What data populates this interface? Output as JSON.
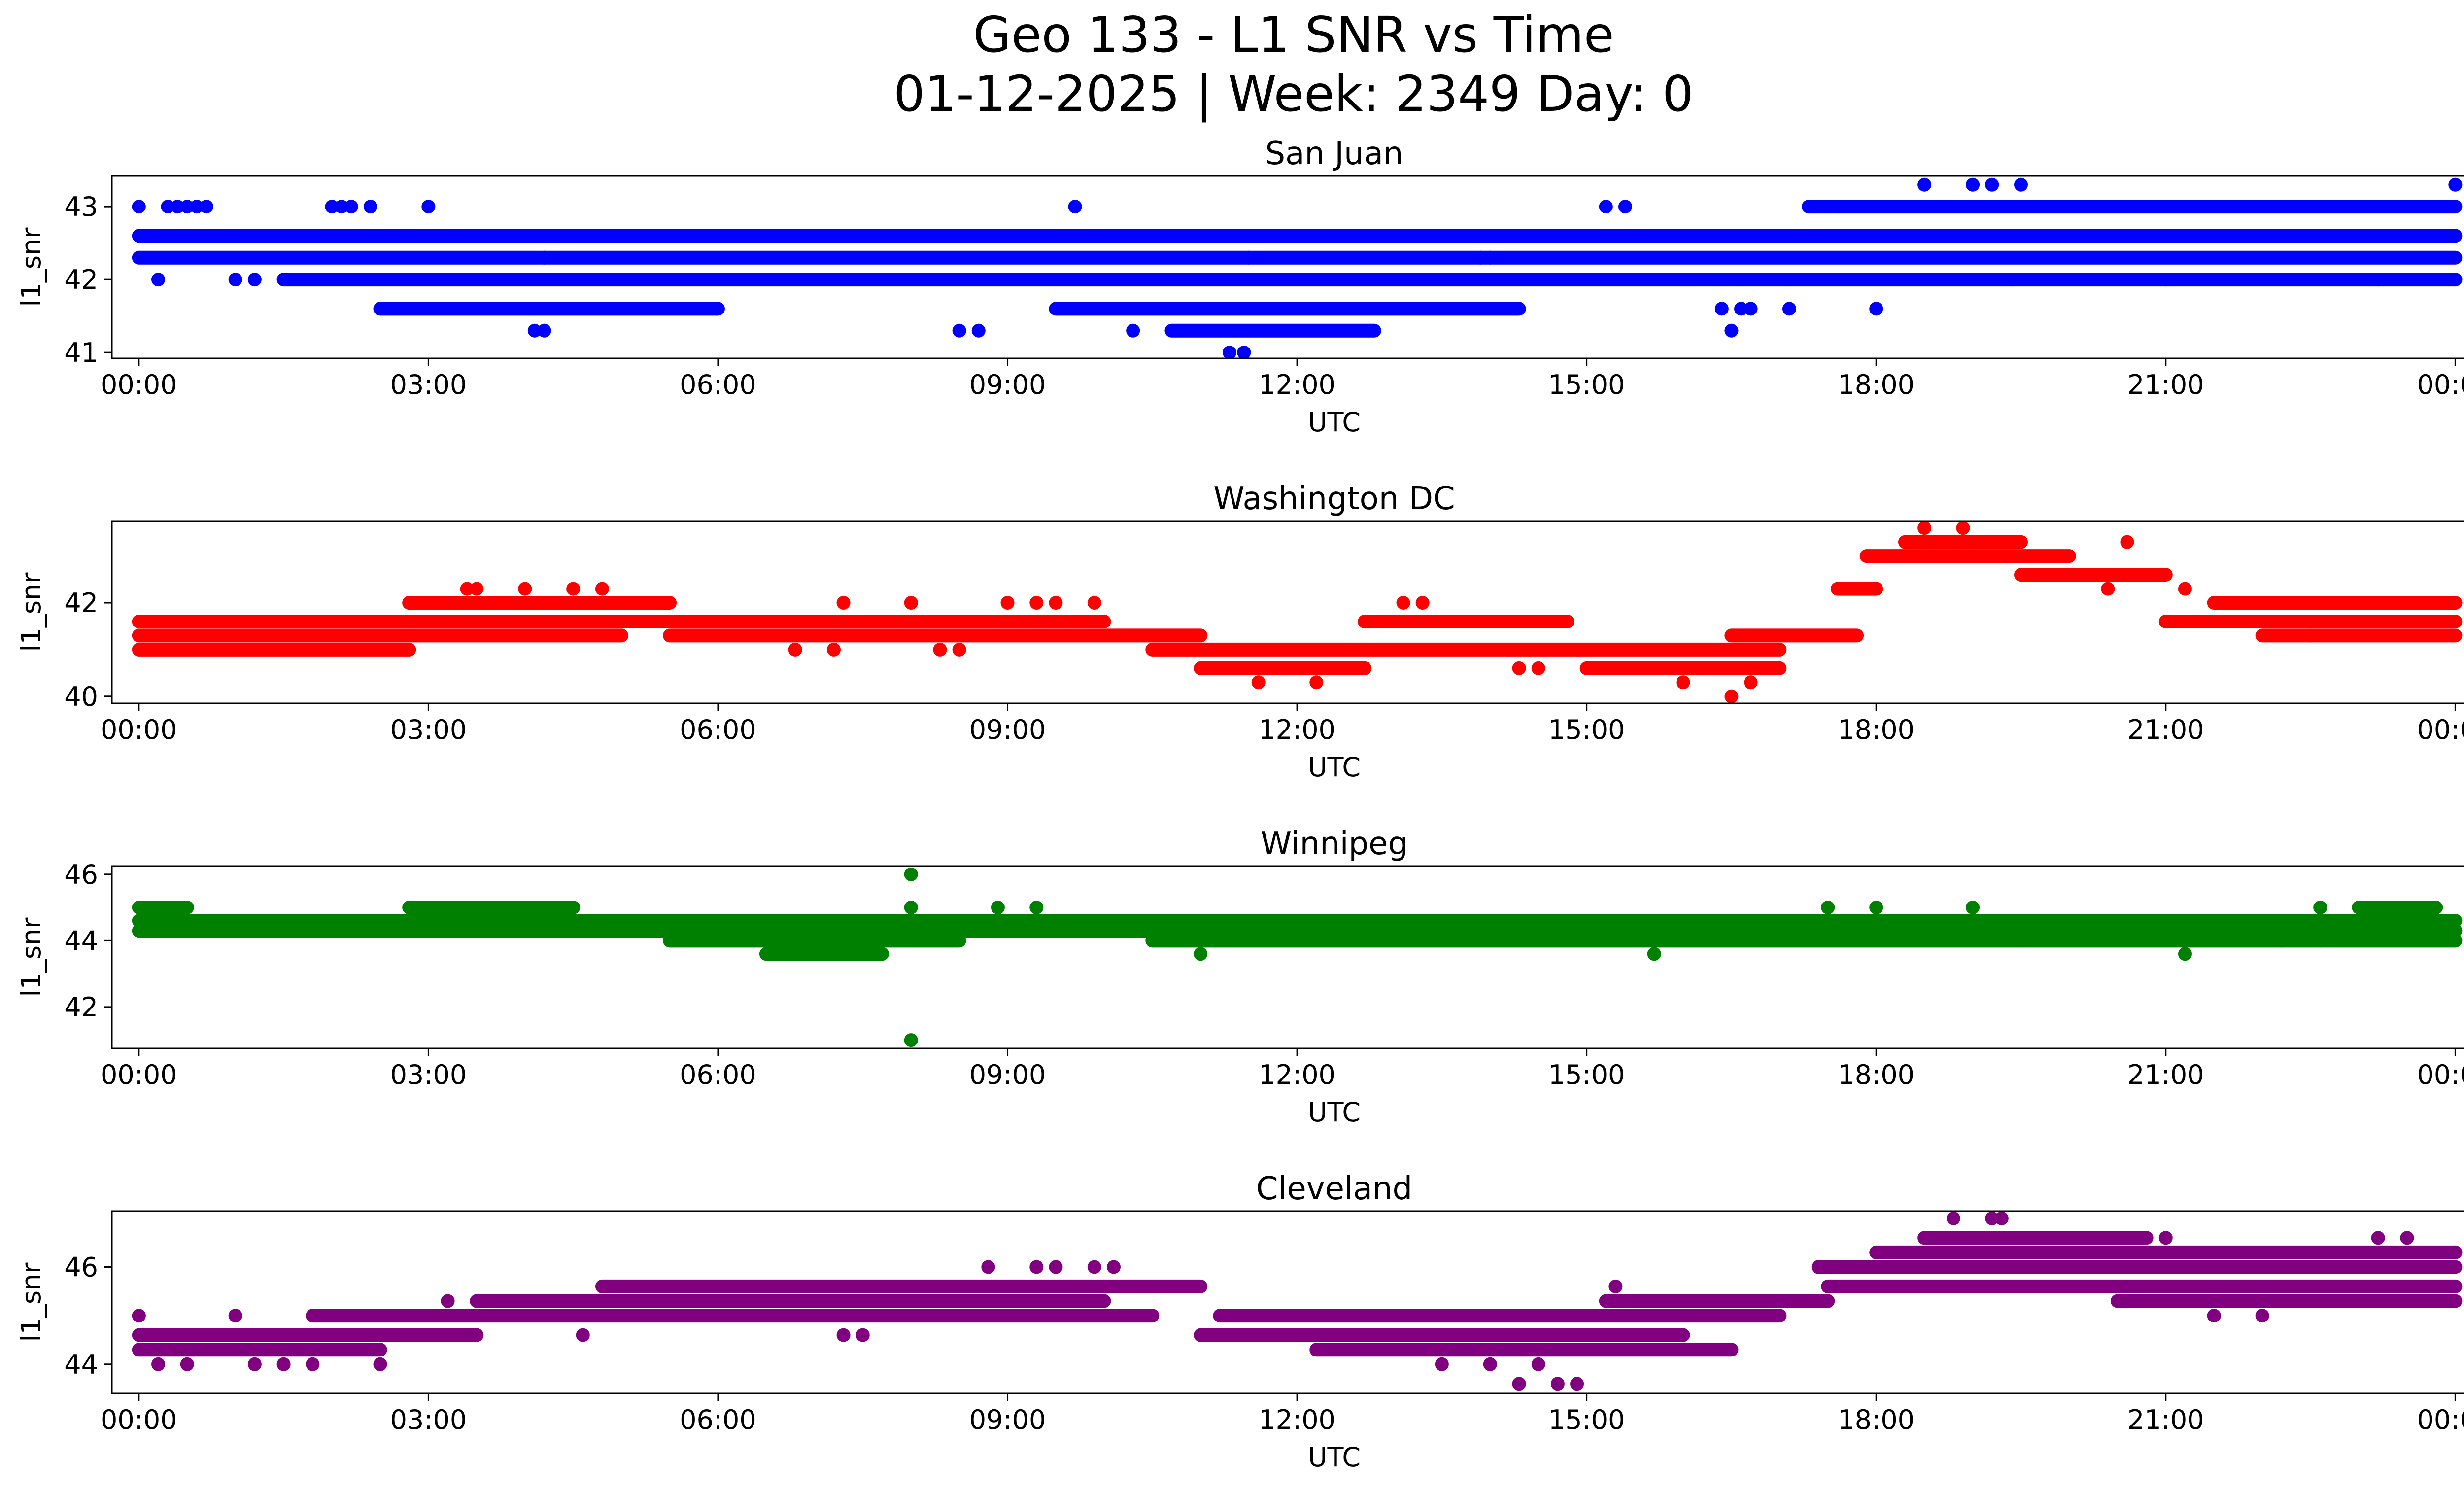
{
  "figure": {
    "title_line1": "Geo 133 - L1 SNR vs Time",
    "title_line2": "01-12-2025 | Week: 2349 Day: 0"
  },
  "chart_data": [
    {
      "type": "scatter",
      "title": "San Juan",
      "xlabel": "UTC",
      "ylabel": "l1_snr",
      "color": "#0000ff",
      "xlim": [
        -0.28,
        25.05
      ],
      "ylim": [
        40.92,
        43.42
      ],
      "xticks": [
        "00:00",
        "03:00",
        "06:00",
        "09:00",
        "12:00",
        "15:00",
        "18:00",
        "21:00",
        "00:00"
      ],
      "yticks": [
        41,
        42,
        43
      ],
      "grid": false,
      "dense_bands": [
        {
          "x0": 0.0,
          "x1": 24.0,
          "y": 42.6
        },
        {
          "x0": 0.0,
          "x1": 24.0,
          "y": 42.3
        },
        {
          "x0": 1.5,
          "x1": 24.0,
          "y": 42.0
        },
        {
          "x0": 2.5,
          "x1": 6.0,
          "y": 41.6
        },
        {
          "x0": 9.5,
          "x1": 14.3,
          "y": 41.6
        },
        {
          "x0": 10.7,
          "x1": 12.8,
          "y": 41.3
        },
        {
          "x0": 17.3,
          "x1": 24.0,
          "y": 43.0
        }
      ],
      "points": [
        [
          0,
          43
        ],
        [
          0.3,
          43
        ],
        [
          0.4,
          43
        ],
        [
          0.5,
          43
        ],
        [
          0.6,
          43
        ],
        [
          0.7,
          43
        ],
        [
          0.2,
          42
        ],
        [
          1,
          42
        ],
        [
          1.2,
          42
        ],
        [
          2,
          43
        ],
        [
          2.1,
          43
        ],
        [
          2.2,
          43
        ],
        [
          2.4,
          43
        ],
        [
          3,
          43
        ],
        [
          3.5,
          42.6
        ],
        [
          4.1,
          41.3
        ],
        [
          4.2,
          41.3
        ],
        [
          4.2,
          42.3
        ],
        [
          7,
          42.6
        ],
        [
          8,
          42.6
        ],
        [
          8.5,
          41.3
        ],
        [
          8.7,
          41.3
        ],
        [
          9.2,
          42.6
        ],
        [
          9.4,
          42.6
        ],
        [
          9.7,
          43
        ],
        [
          9.5,
          42.6
        ],
        [
          10.3,
          41.3
        ],
        [
          10.5,
          42.6
        ],
        [
          10.9,
          42.6
        ],
        [
          11.3,
          41
        ],
        [
          11.45,
          41
        ],
        [
          11.5,
          42.3
        ],
        [
          13.9,
          42.3
        ],
        [
          14,
          42.3
        ],
        [
          15.2,
          43
        ],
        [
          15.4,
          43
        ],
        [
          16,
          42
        ],
        [
          16.5,
          41.3
        ],
        [
          16.4,
          41.6
        ],
        [
          16.6,
          41.6
        ],
        [
          16.7,
          41.6
        ],
        [
          17.1,
          41.6
        ],
        [
          17.6,
          43
        ],
        [
          18.0,
          41.6
        ],
        [
          18.5,
          43.3
        ],
        [
          19.0,
          43.3
        ],
        [
          19.2,
          43.3
        ],
        [
          19.5,
          43.3
        ],
        [
          19.4,
          42
        ],
        [
          21,
          42
        ],
        [
          23.2,
          42
        ],
        [
          24.0,
          43.3
        ],
        [
          24.0,
          42
        ]
      ]
    },
    {
      "type": "scatter",
      "title": "Washington DC",
      "xlabel": "UTC",
      "ylabel": "l1_snr",
      "color": "#ff0000",
      "xlim": [
        -0.28,
        25.05
      ],
      "ylim": [
        39.85,
        43.75
      ],
      "xticks": [
        "00:00",
        "03:00",
        "06:00",
        "09:00",
        "12:00",
        "15:00",
        "18:00",
        "21:00",
        "00:00"
      ],
      "yticks": [
        40,
        42
      ],
      "grid": false,
      "dense_bands": [
        {
          "x0": 0.0,
          "x1": 2.8,
          "y": 41.0
        },
        {
          "x0": 0.0,
          "x1": 5.0,
          "y": 41.3
        },
        {
          "x0": 0.0,
          "x1": 10.0,
          "y": 41.6
        },
        {
          "x0": 2.8,
          "x1": 5.5,
          "y": 42.0
        },
        {
          "x0": 5.5,
          "x1": 11.0,
          "y": 41.3
        },
        {
          "x0": 10.5,
          "x1": 17.0,
          "y": 41.0
        },
        {
          "x0": 11.0,
          "x1": 12.7,
          "y": 40.6
        },
        {
          "x0": 12.7,
          "x1": 14.8,
          "y": 41.6
        },
        {
          "x0": 15.0,
          "x1": 17.0,
          "y": 40.6
        },
        {
          "x0": 16.5,
          "x1": 17.8,
          "y": 41.3
        },
        {
          "x0": 17.6,
          "x1": 18.0,
          "y": 42.3
        },
        {
          "x0": 17.9,
          "x1": 20.0,
          "y": 43.0
        },
        {
          "x0": 18.3,
          "x1": 19.5,
          "y": 43.3
        },
        {
          "x0": 19.5,
          "x1": 21.0,
          "y": 42.6
        },
        {
          "x0": 21.0,
          "x1": 24.0,
          "y": 41.6
        },
        {
          "x0": 21.5,
          "x1": 24.0,
          "y": 42.0
        },
        {
          "x0": 22.0,
          "x1": 24.0,
          "y": 41.3
        }
      ],
      "points": [
        [
          2.8,
          42
        ],
        [
          3.4,
          42.3
        ],
        [
          3.5,
          42.3
        ],
        [
          4.0,
          42.3
        ],
        [
          4.5,
          42.3
        ],
        [
          4.8,
          42.3
        ],
        [
          6.8,
          41
        ],
        [
          7.2,
          41
        ],
        [
          7.3,
          42
        ],
        [
          8.0,
          42
        ],
        [
          8.3,
          41
        ],
        [
          8.5,
          41
        ],
        [
          9.0,
          42
        ],
        [
          9.3,
          42
        ],
        [
          9.5,
          42
        ],
        [
          9.9,
          42
        ],
        [
          11.6,
          40.3
        ],
        [
          12.2,
          40.3
        ],
        [
          13.1,
          42
        ],
        [
          13.3,
          42
        ],
        [
          14.3,
          40.6
        ],
        [
          14.5,
          40.6
        ],
        [
          16.0,
          40.3
        ],
        [
          16.5,
          40.0
        ],
        [
          16.7,
          40.3
        ],
        [
          18.5,
          43.6
        ],
        [
          18.9,
          43.6
        ],
        [
          20.4,
          42.3
        ],
        [
          20.6,
          43.3
        ],
        [
          21.2,
          42.3
        ],
        [
          22.5,
          41.3
        ],
        [
          24.0,
          42
        ]
      ]
    },
    {
      "type": "scatter",
      "title": "Winnipeg",
      "xlabel": "UTC",
      "ylabel": "l1_snr",
      "color": "#008000",
      "xlim": [
        -0.28,
        25.05
      ],
      "ylim": [
        40.75,
        46.25
      ],
      "xticks": [
        "00:00",
        "03:00",
        "06:00",
        "09:00",
        "12:00",
        "15:00",
        "18:00",
        "21:00",
        "00:00"
      ],
      "yticks": [
        42,
        44,
        46
      ],
      "grid": false,
      "dense_bands": [
        {
          "x0": 0.0,
          "x1": 0.5,
          "y": 45.0
        },
        {
          "x0": 2.8,
          "x1": 4.5,
          "y": 45.0
        },
        {
          "x0": 0.0,
          "x1": 24.0,
          "y": 44.6
        },
        {
          "x0": 0.0,
          "x1": 24.0,
          "y": 44.3
        },
        {
          "x0": 5.5,
          "x1": 8.5,
          "y": 44.0
        },
        {
          "x0": 6.5,
          "x1": 7.7,
          "y": 43.6
        },
        {
          "x0": 10.5,
          "x1": 24.0,
          "y": 44.0
        },
        {
          "x0": 23.0,
          "x1": 23.8,
          "y": 45.0
        }
      ],
      "points": [
        [
          8.0,
          46
        ],
        [
          8.0,
          45
        ],
        [
          8.0,
          41
        ],
        [
          8.5,
          44.6
        ],
        [
          8.9,
          45
        ],
        [
          9.3,
          45
        ],
        [
          7.0,
          43.6
        ],
        [
          11.0,
          43.6
        ],
        [
          13.3,
          44.6
        ],
        [
          15.7,
          43.6
        ],
        [
          17.5,
          45
        ],
        [
          18.0,
          45
        ],
        [
          18.5,
          44.6
        ],
        [
          19.0,
          45
        ],
        [
          19.5,
          44
        ],
        [
          21.2,
          43.6
        ],
        [
          22.2,
          44
        ],
        [
          22.6,
          44
        ],
        [
          22.6,
          45
        ],
        [
          23.2,
          45
        ],
        [
          23.4,
          45
        ]
      ]
    },
    {
      "type": "scatter",
      "title": "Cleveland",
      "xlabel": "UTC",
      "ylabel": "l1_snr",
      "color": "#800080",
      "xlim": [
        -0.28,
        25.05
      ],
      "ylim": [
        43.4,
        47.15
      ],
      "xticks": [
        "00:00",
        "03:00",
        "06:00",
        "09:00",
        "12:00",
        "15:00",
        "18:00",
        "21:00",
        "00:00"
      ],
      "yticks": [
        44,
        46
      ],
      "grid": false,
      "dense_bands": [
        {
          "x0": 0.0,
          "x1": 2.5,
          "y": 44.3
        },
        {
          "x0": 0.0,
          "x1": 3.5,
          "y": 44.6
        },
        {
          "x0": 1.8,
          "x1": 10.5,
          "y": 45.0
        },
        {
          "x0": 3.5,
          "x1": 10.0,
          "y": 45.3
        },
        {
          "x0": 4.8,
          "x1": 11.0,
          "y": 45.6
        },
        {
          "x0": 11.0,
          "x1": 16.0,
          "y": 44.6
        },
        {
          "x0": 11.2,
          "x1": 17.0,
          "y": 45.0
        },
        {
          "x0": 12.2,
          "x1": 16.5,
          "y": 44.3
        },
        {
          "x0": 15.2,
          "x1": 17.5,
          "y": 45.3
        },
        {
          "x0": 17.4,
          "x1": 24.0,
          "y": 46.0
        },
        {
          "x0": 17.5,
          "x1": 24.0,
          "y": 45.6
        },
        {
          "x0": 18.5,
          "x1": 20.8,
          "y": 46.6
        },
        {
          "x0": 18.0,
          "x1": 24.0,
          "y": 46.3
        },
        {
          "x0": 20.5,
          "x1": 24.0,
          "y": 45.3
        }
      ],
      "points": [
        [
          0,
          45
        ],
        [
          0.2,
          44
        ],
        [
          0.5,
          44
        ],
        [
          1.0,
          45
        ],
        [
          1.2,
          44
        ],
        [
          1.5,
          44
        ],
        [
          1.8,
          44
        ],
        [
          2.5,
          44
        ],
        [
          3.2,
          45.3
        ],
        [
          4.6,
          44.6
        ],
        [
          7.3,
          44.6
        ],
        [
          7.5,
          44.6
        ],
        [
          8.8,
          46
        ],
        [
          9.3,
          46
        ],
        [
          9.5,
          46
        ],
        [
          9.9,
          46
        ],
        [
          10.1,
          46
        ],
        [
          13.5,
          44
        ],
        [
          14.0,
          44
        ],
        [
          14.3,
          43.6
        ],
        [
          14.5,
          44
        ],
        [
          14.7,
          43.6
        ],
        [
          14.9,
          43.6
        ],
        [
          15.3,
          45.6
        ],
        [
          18.8,
          47
        ],
        [
          19.2,
          47
        ],
        [
          19.3,
          47
        ],
        [
          20.7,
          46.6
        ],
        [
          21.0,
          46.6
        ],
        [
          21.5,
          45
        ],
        [
          22.0,
          45
        ],
        [
          23.2,
          46.6
        ],
        [
          23.5,
          46.6
        ],
        [
          23.8,
          45.3
        ],
        [
          24.0,
          46.3
        ]
      ]
    }
  ]
}
